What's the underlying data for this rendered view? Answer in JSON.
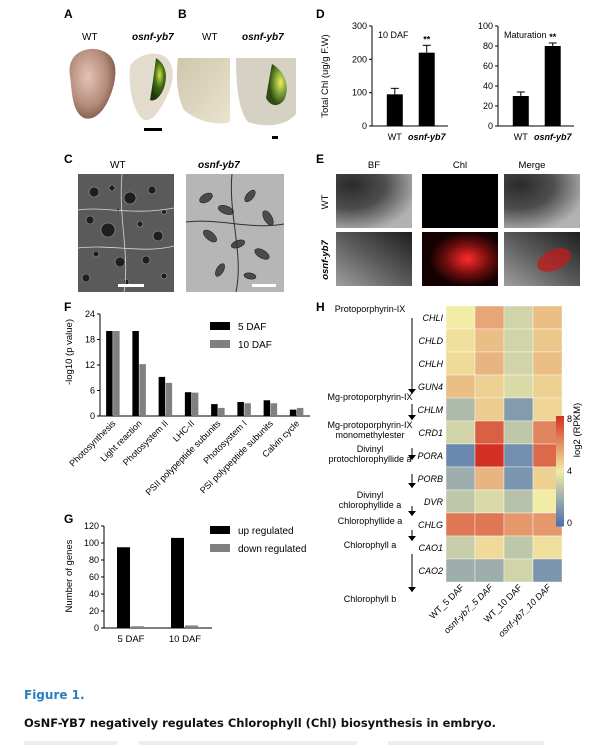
{
  "panel_labels": {
    "a": "A",
    "b": "B",
    "c": "C",
    "d": "D",
    "e": "E",
    "f": "F",
    "g": "G",
    "h": "H"
  },
  "genotypes": {
    "wt": "WT",
    "mutant": "osnf-yb7"
  },
  "panel_e": {
    "columns": [
      "BF",
      "Chl",
      "Merge"
    ],
    "rows": [
      "WT",
      "osnf-yb7"
    ]
  },
  "panel_d": {
    "ylabel": "Total Chl (ug/g F.W)",
    "significance": "**",
    "left_title": "10 DAF",
    "right_title": "Maturation"
  },
  "panel_f": {
    "ylabel": "-log10 (p value)"
  },
  "panel_g": {
    "ylabel": "Number of genes"
  },
  "panel_h": {
    "colorbar_label": "log2 (RPKM)",
    "colorbar_ticks": [
      "8",
      "4",
      "0"
    ],
    "pathway": [
      "Protoporphyrin-IX",
      "Mg-protoporphyrin-IX",
      "Mg-protoporphyrin-IX monomethylester",
      "Divinyl protochlorophyllide a",
      "Divinyl chlorophyllide a",
      "Chlorophyllide a",
      "Chlorophyll a",
      "Chlorophyll b"
    ]
  },
  "caption": {
    "label": "Figure 1.",
    "title": "OsNF-YB7 negatively regulates Chlorophyll (Chl) biosynthesis in embryo."
  },
  "chart_data": [
    {
      "type": "bar",
      "panel": "D-left",
      "categories": [
        "WT",
        "osnf-yb7"
      ],
      "values": [
        95,
        220
      ],
      "errors": [
        18,
        22
      ],
      "title": "10 DAF",
      "ylabel": "Total Chl (ug/g F.W)",
      "ylim": [
        0,
        300
      ],
      "yticks": [
        0,
        100,
        200,
        300
      ]
    },
    {
      "type": "bar",
      "panel": "D-right",
      "categories": [
        "WT",
        "osnf-yb7"
      ],
      "values": [
        30,
        80
      ],
      "errors": [
        4,
        3
      ],
      "title": "Maturation",
      "ylim": [
        0,
        100
      ],
      "yticks": [
        0,
        20,
        40,
        60,
        80,
        100
      ]
    },
    {
      "type": "bar",
      "panel": "F",
      "categories": [
        "Photosynthesis",
        "Light reaction",
        "Photosystem II",
        "LHC-II",
        "PSII polypeptide subunits",
        "Photosystem I",
        "PSI polypeptide subunits",
        "Calvin cycle"
      ],
      "series": [
        {
          "name": "5 DAF",
          "color": "#000000",
          "values": [
            20,
            20,
            9.2,
            5.6,
            2.8,
            3.3,
            3.7,
            1.5
          ]
        },
        {
          "name": "10 DAF",
          "color": "#808080",
          "values": [
            20,
            12.2,
            7.8,
            5.5,
            1.9,
            3.0,
            3.0,
            1.9
          ]
        }
      ],
      "ylabel": "-log10 (p value)",
      "ylim": [
        0,
        24
      ],
      "yticks": [
        0,
        6,
        12,
        18,
        24
      ]
    },
    {
      "type": "bar",
      "panel": "G",
      "categories": [
        "5 DAF",
        "10 DAF"
      ],
      "series": [
        {
          "name": "up regulated",
          "color": "#000000",
          "values": [
            95,
            106
          ]
        },
        {
          "name": "down regulated",
          "color": "#808080",
          "values": [
            2,
            3
          ]
        }
      ],
      "ylabel": "Number of genes",
      "ylim": [
        0,
        120
      ],
      "yticks": [
        0,
        20,
        40,
        60,
        80,
        100,
        120
      ]
    },
    {
      "type": "heatmap",
      "panel": "H",
      "columns": [
        "WT_5 DAF",
        "osnf-yb7_5 DAF",
        "WT_10 DAF",
        "osnf-yb7_10 DAF"
      ],
      "rows": [
        "CHLI",
        "CHLD",
        "CHLH",
        "GUN4",
        "CHLM",
        "CRD1",
        "PORA",
        "PORB",
        "DVR",
        "CHLG",
        "CAO1",
        "CAO2"
      ],
      "values": [
        [
          4.0,
          5.5,
          3.2,
          5.0
        ],
        [
          4.3,
          5.0,
          3.2,
          4.8
        ],
        [
          4.4,
          5.2,
          3.2,
          5.0
        ],
        [
          5.0,
          4.6,
          3.4,
          4.6
        ],
        [
          2.4,
          4.7,
          1.4,
          4.5
        ],
        [
          3.2,
          7.0,
          2.8,
          6.2
        ],
        [
          0.8,
          8.0,
          1.0,
          6.8
        ],
        [
          2.0,
          5.2,
          1.2,
          4.6
        ],
        [
          2.8,
          3.4,
          2.6,
          4.0
        ],
        [
          6.5,
          6.5,
          5.8,
          5.8
        ],
        [
          3.0,
          4.4,
          2.8,
          4.3
        ],
        [
          2.0,
          2.0,
          3.2,
          1.2
        ]
      ],
      "vmin": 0,
      "vmax": 8
    }
  ]
}
